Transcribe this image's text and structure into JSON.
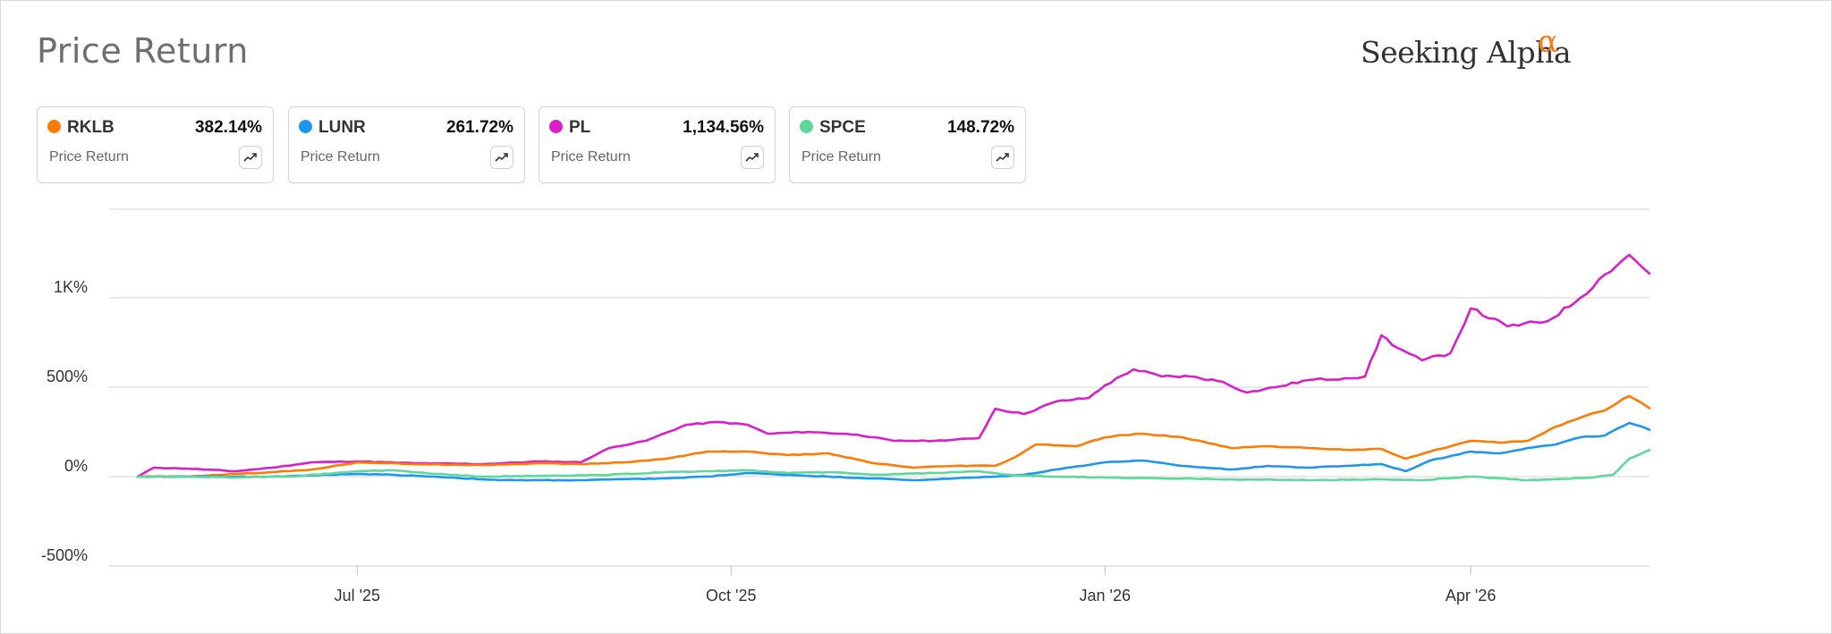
{
  "header": {
    "title": "Price Return",
    "brand_name": "Seeking Alpha",
    "brand_mark": "α"
  },
  "cards": [
    {
      "ticker": "RKLB",
      "value": "382.14%",
      "label": "Price Return",
      "color": "#ff7a00",
      "icon": "trend-icon"
    },
    {
      "ticker": "LUNR",
      "value": "261.72%",
      "label": "Price Return",
      "color": "#1e96f0",
      "icon": "trend-icon"
    },
    {
      "ticker": "PL",
      "value": "1,134.56%",
      "label": "Price Return",
      "color": "#d81fc8",
      "icon": "trend-icon"
    },
    {
      "ticker": "SPCE",
      "value": "148.72%",
      "label": "Price Return",
      "color": "#5fd79b",
      "icon": "trend-icon"
    }
  ],
  "chart_data": {
    "type": "line",
    "title": "Price Return",
    "xlabel": "",
    "ylabel": "",
    "x_type": "date",
    "x_range": [
      "2025-05-08",
      "2026-05-15"
    ],
    "ylim": [
      -500,
      1500
    ],
    "y_ticks": [
      -500,
      0,
      500,
      1000
    ],
    "y_tick_labels": [
      "-500%",
      "0%",
      "500%",
      "1K%"
    ],
    "x_ticks": [
      "2025-07-01",
      "2025-10-01",
      "2026-01-01",
      "2026-04-01"
    ],
    "x_tick_labels": [
      "Jul '25",
      "Oct '25",
      "Jan '26",
      "Apr '26"
    ],
    "grid": "horizontal",
    "legend": "top",
    "series": [
      {
        "name": "PL",
        "color": "#d81fc8",
        "points": [
          [
            "2025-05-08",
            0
          ],
          [
            "2025-05-12",
            50
          ],
          [
            "2025-05-20",
            45
          ],
          [
            "2025-06-01",
            30
          ],
          [
            "2025-06-10",
            50
          ],
          [
            "2025-06-20",
            80
          ],
          [
            "2025-07-01",
            85
          ],
          [
            "2025-07-15",
            75
          ],
          [
            "2025-08-01",
            70
          ],
          [
            "2025-08-15",
            85
          ],
          [
            "2025-08-25",
            80
          ],
          [
            "2025-09-01",
            160
          ],
          [
            "2025-09-10",
            200
          ],
          [
            "2025-09-20",
            290
          ],
          [
            "2025-09-28",
            305
          ],
          [
            "2025-10-05",
            290
          ],
          [
            "2025-10-10",
            240
          ],
          [
            "2025-10-20",
            250
          ],
          [
            "2025-11-01",
            235
          ],
          [
            "2025-11-10",
            200
          ],
          [
            "2025-11-20",
            200
          ],
          [
            "2025-12-01",
            215
          ],
          [
            "2025-12-05",
            380
          ],
          [
            "2025-12-12",
            350
          ],
          [
            "2025-12-20",
            420
          ],
          [
            "2025-12-28",
            440
          ],
          [
            "2026-01-01",
            510
          ],
          [
            "2026-01-08",
            600
          ],
          [
            "2026-01-15",
            560
          ],
          [
            "2026-01-22",
            560
          ],
          [
            "2026-01-30",
            530
          ],
          [
            "2026-02-05",
            470
          ],
          [
            "2026-02-12",
            500
          ],
          [
            "2026-02-20",
            540
          ],
          [
            "2026-03-01",
            550
          ],
          [
            "2026-03-06",
            560
          ],
          [
            "2026-03-10",
            790
          ],
          [
            "2026-03-14",
            720
          ],
          [
            "2026-03-20",
            650
          ],
          [
            "2026-03-27",
            690
          ],
          [
            "2026-04-01",
            940
          ],
          [
            "2026-04-10",
            840
          ],
          [
            "2026-04-20",
            870
          ],
          [
            "2026-04-28",
            1000
          ],
          [
            "2026-05-04",
            1130
          ],
          [
            "2026-05-10",
            1240
          ],
          [
            "2026-05-15",
            1135
          ]
        ]
      },
      {
        "name": "RKLB",
        "color": "#ff7a00",
        "points": [
          [
            "2025-05-08",
            0
          ],
          [
            "2025-05-20",
            0
          ],
          [
            "2025-06-01",
            15
          ],
          [
            "2025-06-10",
            25
          ],
          [
            "2025-06-20",
            40
          ],
          [
            "2025-07-01",
            80
          ],
          [
            "2025-07-15",
            70
          ],
          [
            "2025-08-01",
            65
          ],
          [
            "2025-08-15",
            75
          ],
          [
            "2025-08-25",
            70
          ],
          [
            "2025-09-05",
            80
          ],
          [
            "2025-09-15",
            100
          ],
          [
            "2025-09-25",
            140
          ],
          [
            "2025-10-05",
            140
          ],
          [
            "2025-10-15",
            120
          ],
          [
            "2025-10-25",
            130
          ],
          [
            "2025-11-05",
            75
          ],
          [
            "2025-11-15",
            50
          ],
          [
            "2025-11-25",
            60
          ],
          [
            "2025-12-05",
            60
          ],
          [
            "2025-12-10",
            110
          ],
          [
            "2025-12-15",
            180
          ],
          [
            "2025-12-25",
            170
          ],
          [
            "2026-01-01",
            220
          ],
          [
            "2026-01-10",
            240
          ],
          [
            "2026-01-20",
            220
          ],
          [
            "2026-02-01",
            160
          ],
          [
            "2026-02-10",
            170
          ],
          [
            "2026-02-20",
            160
          ],
          [
            "2026-03-01",
            150
          ],
          [
            "2026-03-10",
            155
          ],
          [
            "2026-03-16",
            100
          ],
          [
            "2026-03-22",
            140
          ],
          [
            "2026-04-01",
            200
          ],
          [
            "2026-04-08",
            190
          ],
          [
            "2026-04-15",
            200
          ],
          [
            "2026-04-22",
            280
          ],
          [
            "2026-04-28",
            330
          ],
          [
            "2026-05-04",
            370
          ],
          [
            "2026-05-10",
            450
          ],
          [
            "2026-05-15",
            382
          ]
        ]
      },
      {
        "name": "LUNR",
        "color": "#1e96f0",
        "points": [
          [
            "2025-05-08",
            0
          ],
          [
            "2025-05-20",
            0
          ],
          [
            "2025-06-10",
            0
          ],
          [
            "2025-07-01",
            15
          ],
          [
            "2025-07-10",
            10
          ],
          [
            "2025-07-20",
            0
          ],
          [
            "2025-08-05",
            -20
          ],
          [
            "2025-08-25",
            -20
          ],
          [
            "2025-09-15",
            -10
          ],
          [
            "2025-09-25",
            0
          ],
          [
            "2025-10-05",
            20
          ],
          [
            "2025-10-15",
            10
          ],
          [
            "2025-10-25",
            0
          ],
          [
            "2025-11-05",
            -10
          ],
          [
            "2025-11-15",
            -20
          ],
          [
            "2025-11-25",
            -10
          ],
          [
            "2025-12-05",
            0
          ],
          [
            "2025-12-12",
            10
          ],
          [
            "2025-12-20",
            40
          ],
          [
            "2026-01-01",
            80
          ],
          [
            "2026-01-10",
            90
          ],
          [
            "2026-01-20",
            60
          ],
          [
            "2026-02-01",
            40
          ],
          [
            "2026-02-10",
            60
          ],
          [
            "2026-02-20",
            50
          ],
          [
            "2026-03-01",
            60
          ],
          [
            "2026-03-10",
            70
          ],
          [
            "2026-03-16",
            30
          ],
          [
            "2026-03-22",
            90
          ],
          [
            "2026-04-01",
            140
          ],
          [
            "2026-04-08",
            130
          ],
          [
            "2026-04-15",
            160
          ],
          [
            "2026-04-22",
            180
          ],
          [
            "2026-04-28",
            220
          ],
          [
            "2026-05-04",
            230
          ],
          [
            "2026-05-10",
            300
          ],
          [
            "2026-05-15",
            262
          ]
        ]
      },
      {
        "name": "SPCE",
        "color": "#5fd79b",
        "points": [
          [
            "2025-05-08",
            0
          ],
          [
            "2025-05-20",
            0
          ],
          [
            "2025-06-01",
            -5
          ],
          [
            "2025-06-15",
            0
          ],
          [
            "2025-07-01",
            30
          ],
          [
            "2025-07-10",
            35
          ],
          [
            "2025-07-20",
            15
          ],
          [
            "2025-08-01",
            0
          ],
          [
            "2025-08-20",
            5
          ],
          [
            "2025-09-01",
            10
          ],
          [
            "2025-09-15",
            25
          ],
          [
            "2025-09-25",
            30
          ],
          [
            "2025-10-05",
            35
          ],
          [
            "2025-10-15",
            20
          ],
          [
            "2025-10-25",
            25
          ],
          [
            "2025-11-05",
            10
          ],
          [
            "2025-11-20",
            20
          ],
          [
            "2025-12-01",
            30
          ],
          [
            "2025-12-10",
            5
          ],
          [
            "2025-12-20",
            0
          ],
          [
            "2026-01-01",
            -5
          ],
          [
            "2026-01-15",
            -10
          ],
          [
            "2026-02-01",
            -15
          ],
          [
            "2026-02-20",
            -20
          ],
          [
            "2026-03-10",
            -15
          ],
          [
            "2026-03-20",
            -20
          ],
          [
            "2026-04-01",
            0
          ],
          [
            "2026-04-15",
            -20
          ],
          [
            "2026-05-01",
            -5
          ],
          [
            "2026-05-06",
            10
          ],
          [
            "2026-05-10",
            100
          ],
          [
            "2026-05-15",
            149
          ]
        ]
      }
    ]
  }
}
